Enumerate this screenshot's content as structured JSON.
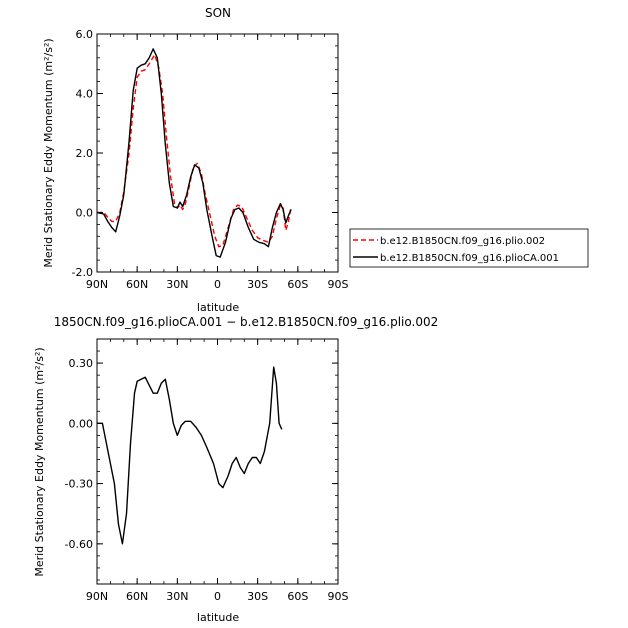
{
  "chart_data": [
    {
      "type": "line",
      "title": "SON",
      "xlabel": "latitude",
      "ylabel": "Merid Stationary Eddy Momentum (m²/s²)",
      "x_ticks": [
        90,
        60,
        30,
        0,
        -30,
        -60,
        -90
      ],
      "x_tick_labels": [
        "90N",
        "60N",
        "30N",
        "0",
        "30S",
        "60S",
        "90S"
      ],
      "xlim": [
        90,
        -90
      ],
      "y_ticks": [
        6.0,
        4.0,
        2.0,
        0.0,
        -2.0
      ],
      "y_tick_labels": [
        "6.0",
        "4.0",
        "2.0",
        "0.0",
        "-2.0"
      ],
      "ylim": [
        -2.0,
        6.0
      ],
      "legend": {
        "placement": "outside-right"
      },
      "series": [
        {
          "name": "b.e12.B1850CN.f09_g16.plio.002",
          "color": "#ff0000",
          "dash": "dashed",
          "points": [
            [
              90,
              0.0
            ],
            [
              85,
              0.0
            ],
            [
              82,
              -0.15
            ],
            [
              79,
              -0.3
            ],
            [
              76,
              -0.3
            ],
            [
              73,
              0.0
            ],
            [
              70,
              0.7
            ],
            [
              66,
              2.0
            ],
            [
              63,
              3.5
            ],
            [
              60,
              4.55
            ],
            [
              57,
              4.75
            ],
            [
              54,
              4.8
            ],
            [
              51,
              5.0
            ],
            [
              47,
              5.3
            ],
            [
              44,
              4.9
            ],
            [
              41,
              4.0
            ],
            [
              38,
              2.5
            ],
            [
              35,
              1.2
            ],
            [
              32,
              0.25
            ],
            [
              30,
              0.15
            ],
            [
              28,
              0.25
            ],
            [
              26,
              0.1
            ],
            [
              24,
              0.3
            ],
            [
              21,
              0.9
            ],
            [
              18,
              1.55
            ],
            [
              15,
              1.65
            ],
            [
              12,
              1.3
            ],
            [
              9,
              0.6
            ],
            [
              5,
              -0.2
            ],
            [
              2,
              -0.8
            ],
            [
              -1,
              -1.15
            ],
            [
              -4,
              -1.1
            ],
            [
              -8,
              -0.5
            ],
            [
              -12,
              0.1
            ],
            [
              -15,
              0.25
            ],
            [
              -18,
              0.2
            ],
            [
              -22,
              -0.2
            ],
            [
              -26,
              -0.6
            ],
            [
              -30,
              -0.85
            ],
            [
              -35,
              -0.95
            ],
            [
              -38,
              -1.0
            ],
            [
              -41,
              -0.8
            ],
            [
              -44,
              -0.2
            ],
            [
              -47,
              0.25
            ],
            [
              -49,
              0.15
            ],
            [
              -51,
              -0.6
            ],
            [
              -53,
              -0.3
            ],
            [
              -55,
              0.2
            ]
          ]
        },
        {
          "name": "b.e12.B1850CN.f09_g16.plioCA.001",
          "color": "#000000",
          "dash": "solid",
          "points": [
            [
              90,
              0.0
            ],
            [
              85,
              -0.05
            ],
            [
              82,
              -0.3
            ],
            [
              79,
              -0.5
            ],
            [
              76,
              -0.65
            ],
            [
              73,
              -0.1
            ],
            [
              70,
              0.6
            ],
            [
              66,
              2.4
            ],
            [
              63,
              4.1
            ],
            [
              60,
              4.85
            ],
            [
              57,
              4.95
            ],
            [
              54,
              5.0
            ],
            [
              51,
              5.2
            ],
            [
              48,
              5.5
            ],
            [
              45,
              5.2
            ],
            [
              42,
              4.0
            ],
            [
              39,
              2.3
            ],
            [
              36,
              1.0
            ],
            [
              33,
              0.2
            ],
            [
              30,
              0.15
            ],
            [
              28,
              0.35
            ],
            [
              26,
              0.2
            ],
            [
              23,
              0.6
            ],
            [
              20,
              1.2
            ],
            [
              17,
              1.6
            ],
            [
              14,
              1.5
            ],
            [
              11,
              1.0
            ],
            [
              8,
              0.1
            ],
            [
              4,
              -0.8
            ],
            [
              1,
              -1.45
            ],
            [
              -2,
              -1.5
            ],
            [
              -6,
              -1.0
            ],
            [
              -10,
              -0.2
            ],
            [
              -13,
              0.1
            ],
            [
              -16,
              0.15
            ],
            [
              -19,
              0.0
            ],
            [
              -23,
              -0.5
            ],
            [
              -27,
              -0.9
            ],
            [
              -31,
              -1.0
            ],
            [
              -35,
              -1.05
            ],
            [
              -38,
              -1.15
            ],
            [
              -41,
              -0.5
            ],
            [
              -44,
              0.0
            ],
            [
              -47,
              0.3
            ],
            [
              -49,
              0.1
            ],
            [
              -51,
              -0.35
            ],
            [
              -53,
              -0.1
            ],
            [
              -55,
              0.1
            ]
          ]
        }
      ]
    },
    {
      "type": "line",
      "title": "1850CN.f09_g16.plioCA.001 − b.e12.B1850CN.f09_g16.plio.002",
      "xlabel": "latitude",
      "ylabel": "Merid Stationary Eddy Momentum (m²/s²)",
      "x_ticks": [
        90,
        60,
        30,
        0,
        -30,
        -60,
        -90
      ],
      "x_tick_labels": [
        "90N",
        "60N",
        "30N",
        "0",
        "30S",
        "60S",
        "90S"
      ],
      "xlim": [
        90,
        -90
      ],
      "y_ticks": [
        0.3,
        0.0,
        -0.3,
        -0.6
      ],
      "y_tick_labels": [
        "0.30",
        "0.00",
        "-0.30",
        "-0.60"
      ],
      "ylim": [
        -0.8,
        0.42
      ],
      "series": [
        {
          "color": "#000000",
          "dash": "solid",
          "points": [
            [
              90,
              0.0
            ],
            [
              86,
              0.0
            ],
            [
              83,
              -0.1
            ],
            [
              80,
              -0.2
            ],
            [
              77,
              -0.3
            ],
            [
              74,
              -0.5
            ],
            [
              71,
              -0.6
            ],
            [
              68,
              -0.45
            ],
            [
              65,
              -0.1
            ],
            [
              62,
              0.15
            ],
            [
              60,
              0.21
            ],
            [
              57,
              0.22
            ],
            [
              54,
              0.23
            ],
            [
              51,
              0.19
            ],
            [
              48,
              0.15
            ],
            [
              45,
              0.15
            ],
            [
              42,
              0.2
            ],
            [
              39,
              0.22
            ],
            [
              36,
              0.12
            ],
            [
              33,
              0.0
            ],
            [
              30,
              -0.06
            ],
            [
              27,
              -0.01
            ],
            [
              24,
              0.01
            ],
            [
              20,
              0.01
            ],
            [
              16,
              -0.02
            ],
            [
              12,
              -0.06
            ],
            [
              8,
              -0.12
            ],
            [
              3,
              -0.2
            ],
            [
              -1,
              -0.3
            ],
            [
              -4,
              -0.32
            ],
            [
              -8,
              -0.26
            ],
            [
              -11,
              -0.2
            ],
            [
              -14,
              -0.17
            ],
            [
              -17,
              -0.22
            ],
            [
              -20,
              -0.25
            ],
            [
              -23,
              -0.2
            ],
            [
              -26,
              -0.17
            ],
            [
              -29,
              -0.17
            ],
            [
              -32,
              -0.2
            ],
            [
              -35,
              -0.14
            ],
            [
              -39,
              0.0
            ],
            [
              -42,
              0.28
            ],
            [
              -44,
              0.2
            ],
            [
              -46,
              -0.0
            ],
            [
              -48,
              -0.03
            ]
          ]
        }
      ]
    }
  ]
}
